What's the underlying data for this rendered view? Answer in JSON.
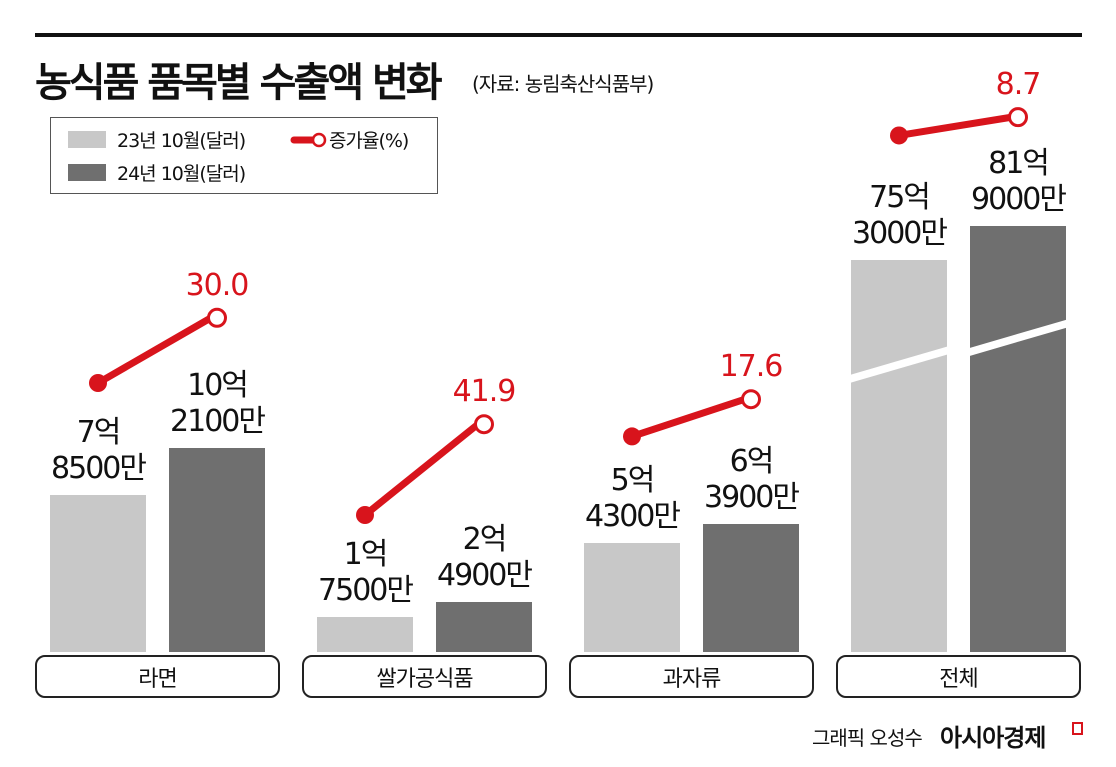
{
  "title": "농식품 품목별 수출액 변화",
  "source": "(자료: 농림축산식품부)",
  "legend": {
    "series_2023": "23년 10월(달러)",
    "series_2024": "24년 10월(달러)",
    "growth": "증가율(%)"
  },
  "colors": {
    "series_2023": "#c8c8c8",
    "series_2024": "#6f6f6f",
    "growth": "#d8141c"
  },
  "credit": "그래픽 오성수",
  "brand": "아시아경제",
  "chart_data": {
    "type": "bar",
    "categories": [
      "라면",
      "쌀가공식품",
      "과자류",
      "전체"
    ],
    "unit": "억 달러",
    "series": [
      {
        "name": "23년 10월(달러)",
        "values": [
          7.85,
          1.75,
          5.43,
          75.3
        ],
        "labels": [
          [
            "7억",
            "8500만"
          ],
          [
            "1억",
            "7500만"
          ],
          [
            "5억",
            "4300만"
          ],
          [
            "75억",
            "3000만"
          ]
        ]
      },
      {
        "name": "24년 10월(달러)",
        "values": [
          10.21,
          2.49,
          6.39,
          81.9
        ],
        "labels": [
          [
            "10억",
            "2100만"
          ],
          [
            "2억",
            "4900만"
          ],
          [
            "6억",
            "3900만"
          ],
          [
            "81억",
            "9000만"
          ]
        ]
      }
    ],
    "growth": {
      "name": "증가율(%)",
      "values": [
        "30.0",
        "41.9",
        "17.6",
        "8.7"
      ]
    },
    "axis_break_on": "전체"
  }
}
